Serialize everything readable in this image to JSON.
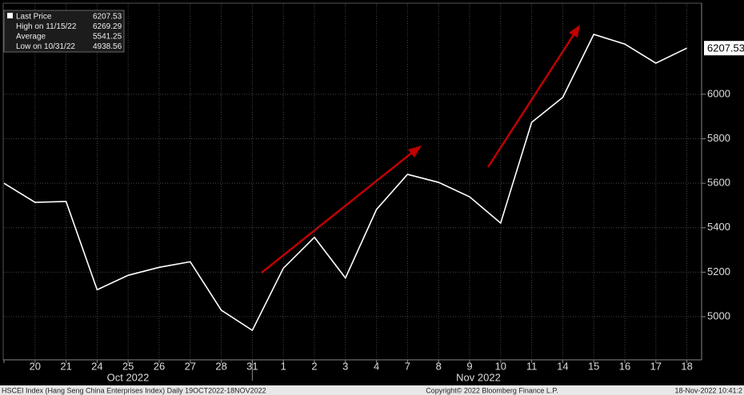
{
  "chart_data": {
    "type": "line",
    "categories": [
      null,
      "20",
      "21",
      "24",
      "25",
      "26",
      "27",
      "28",
      "31",
      "1",
      "2",
      "3",
      "4",
      "7",
      "8",
      "9",
      "10",
      "11",
      "14",
      "15",
      "16",
      "17",
      "18"
    ],
    "months": [
      "Oct 2022",
      "Nov 2022"
    ],
    "series": [
      {
        "name": "Last Price",
        "color": "#ffffff",
        "values": [
          5600,
          5514,
          5518,
          5121,
          5186,
          5222,
          5247,
          5029,
          4938.56,
          5218,
          5357,
          5174,
          5482,
          5640,
          5604,
          5539,
          5421,
          5874,
          5986,
          6269.29,
          6226,
          6140,
          6207.53
        ]
      }
    ],
    "legend": [
      {
        "label": "Last Price",
        "value": 6207.53
      },
      {
        "label": "High on 11/15/22",
        "value": 6269.29
      },
      {
        "label": "Average",
        "value": 5541.25
      },
      {
        "label": "Low on 10/31/22",
        "value": 4938.56
      }
    ],
    "ylim": [
      4806,
      6406
    ],
    "yticks": [
      5000,
      5200,
      5400,
      5600,
      5800,
      6000
    ],
    "grid": true,
    "axis_side": "right",
    "footer": [
      "HSCEI Index (Hang Seng China Enterprises Index)  Daily 19OCT2022-18NOV2022",
      "Copyright© 2022 Bloomberg Finance L.P.",
      "18-Nov-2022 10:41:2"
    ]
  }
}
